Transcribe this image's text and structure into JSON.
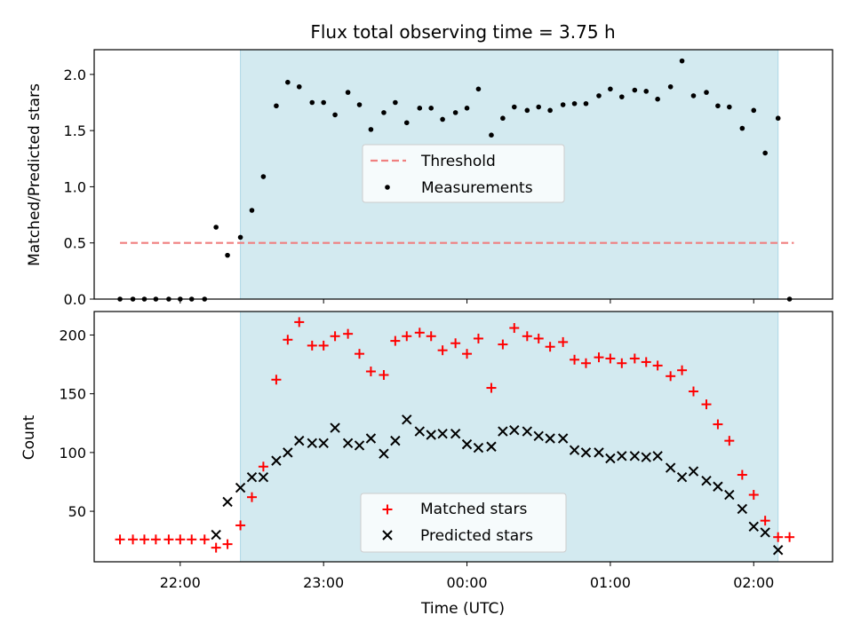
{
  "chart_data": [
    {
      "type": "scatter",
      "title": "Flux total observing time = 3.75 h",
      "xlabel": "",
      "ylabel": "Matched/Predicted stars",
      "x_unit": "hours since 00:00 UTC",
      "xlim": [
        -2.6,
        2.55
      ],
      "ylim": [
        0,
        2.22
      ],
      "yticks": [
        "0.0",
        "0.5",
        "1.0",
        "1.5",
        "2.0"
      ],
      "xtick_labels_shown": false,
      "shaded_region": [
        -1.58,
        2.17
      ],
      "shaded_color": "#d3eaf0",
      "legend": {
        "position": "center",
        "entries": [
          "Threshold",
          "Measurements"
        ]
      },
      "threshold": {
        "name": "Threshold",
        "value": 0.5,
        "x_range": [
          -2.42,
          2.28
        ],
        "color": "#f08080",
        "style": "dashed"
      },
      "measurements": {
        "name": "Measurements",
        "color": "#000000",
        "x": [
          -2.42,
          -2.33,
          -2.25,
          -2.17,
          -2.08,
          -2.0,
          -1.92,
          -1.83,
          -1.75,
          -1.67,
          -1.58,
          -1.5,
          -1.42,
          -1.33,
          -1.25,
          -1.17,
          -1.08,
          -1.0,
          -0.92,
          -0.83,
          -0.75,
          -0.67,
          -0.58,
          -0.5,
          -0.42,
          -0.33,
          -0.25,
          -0.17,
          -0.08,
          0.0,
          0.08,
          0.17,
          0.25,
          0.33,
          0.42,
          0.5,
          0.58,
          0.67,
          0.75,
          0.83,
          0.92,
          1.0,
          1.08,
          1.17,
          1.25,
          1.33,
          1.42,
          1.5,
          1.58,
          1.67,
          1.75,
          1.83,
          1.92,
          2.0,
          2.08,
          2.17,
          2.25
        ],
        "y": [
          0,
          0,
          0,
          0,
          0,
          0,
          0,
          0,
          0.64,
          0.39,
          0.55,
          0.79,
          1.09,
          1.72,
          1.93,
          1.89,
          1.75,
          1.75,
          1.64,
          1.84,
          1.73,
          1.51,
          1.66,
          1.75,
          1.57,
          1.7,
          1.7,
          1.6,
          1.66,
          1.7,
          1.87,
          1.46,
          1.61,
          1.71,
          1.68,
          1.71,
          1.68,
          1.73,
          1.74,
          1.74,
          1.81,
          1.87,
          1.8,
          1.86,
          1.85,
          1.78,
          1.89,
          2.12,
          1.81,
          1.84,
          1.72,
          1.71,
          1.52,
          1.68,
          1.3,
          1.61,
          0
        ]
      }
    },
    {
      "type": "scatter",
      "title": "",
      "xlabel": "Time (UTC)",
      "ylabel": "Count",
      "x_unit": "hours since 00:00 UTC",
      "xlim": [
        -2.6,
        2.55
      ],
      "ylim": [
        7,
        220
      ],
      "yticks": [
        "50",
        "100",
        "150",
        "200"
      ],
      "xticks": [
        "22:00",
        "23:00",
        "00:00",
        "01:00",
        "02:00"
      ],
      "shaded_region": [
        -1.58,
        2.17
      ],
      "shaded_color": "#d3eaf0",
      "legend": {
        "position": "bottom-center",
        "entries": [
          "Matched stars",
          "Predicted stars"
        ]
      },
      "series": [
        {
          "name": "Matched stars",
          "marker": "plus",
          "color": "#ff0000",
          "x": [
            -2.42,
            -2.33,
            -2.25,
            -2.17,
            -2.08,
            -2.0,
            -1.92,
            -1.83,
            -1.75,
            -1.67,
            -1.58,
            -1.5,
            -1.42,
            -1.33,
            -1.25,
            -1.17,
            -1.08,
            -1.0,
            -0.92,
            -0.83,
            -0.75,
            -0.67,
            -0.58,
            -0.5,
            -0.42,
            -0.33,
            -0.25,
            -0.17,
            -0.08,
            0.0,
            0.08,
            0.17,
            0.25,
            0.33,
            0.42,
            0.5,
            0.58,
            0.67,
            0.75,
            0.83,
            0.92,
            1.0,
            1.08,
            1.17,
            1.25,
            1.33,
            1.42,
            1.5,
            1.58,
            1.67,
            1.75,
            1.83,
            1.92,
            2.0,
            2.08,
            2.17,
            2.25
          ],
          "y": [
            26,
            26,
            26,
            26,
            26,
            26,
            26,
            26,
            19,
            22,
            38,
            62,
            88,
            162,
            196,
            211,
            191,
            191,
            199,
            201,
            184,
            169,
            166,
            195,
            199,
            202,
            199,
            187,
            193,
            184,
            197,
            155,
            192,
            206,
            199,
            197,
            190,
            194,
            179,
            176,
            181,
            180,
            176,
            180,
            177,
            174,
            165,
            170,
            152,
            141,
            124,
            110,
            81,
            64,
            42,
            28,
            28
          ]
        },
        {
          "name": "Predicted stars",
          "marker": "x",
          "color": "#000000",
          "x": [
            -1.75,
            -1.67,
            -1.58,
            -1.5,
            -1.42,
            -1.33,
            -1.25,
            -1.17,
            -1.08,
            -1.0,
            -0.92,
            -0.83,
            -0.75,
            -0.67,
            -0.58,
            -0.5,
            -0.42,
            -0.33,
            -0.25,
            -0.17,
            -0.08,
            0.0,
            0.08,
            0.17,
            0.25,
            0.33,
            0.42,
            0.5,
            0.58,
            0.67,
            0.75,
            0.83,
            0.92,
            1.0,
            1.08,
            1.17,
            1.25,
            1.33,
            1.42,
            1.5,
            1.58,
            1.67,
            1.75,
            1.83,
            1.92,
            2.0,
            2.08,
            2.17
          ],
          "y": [
            30,
            58,
            70,
            79,
            79,
            93,
            100,
            110,
            108,
            108,
            121,
            108,
            106,
            112,
            99,
            110,
            128,
            118,
            115,
            116,
            116,
            107,
            104,
            105,
            118,
            119,
            118,
            114,
            112,
            112,
            102,
            100,
            100,
            95,
            97,
            97,
            96,
            97,
            87,
            79,
            84,
            76,
            71,
            64,
            52,
            37,
            32,
            17
          ]
        }
      ]
    }
  ]
}
